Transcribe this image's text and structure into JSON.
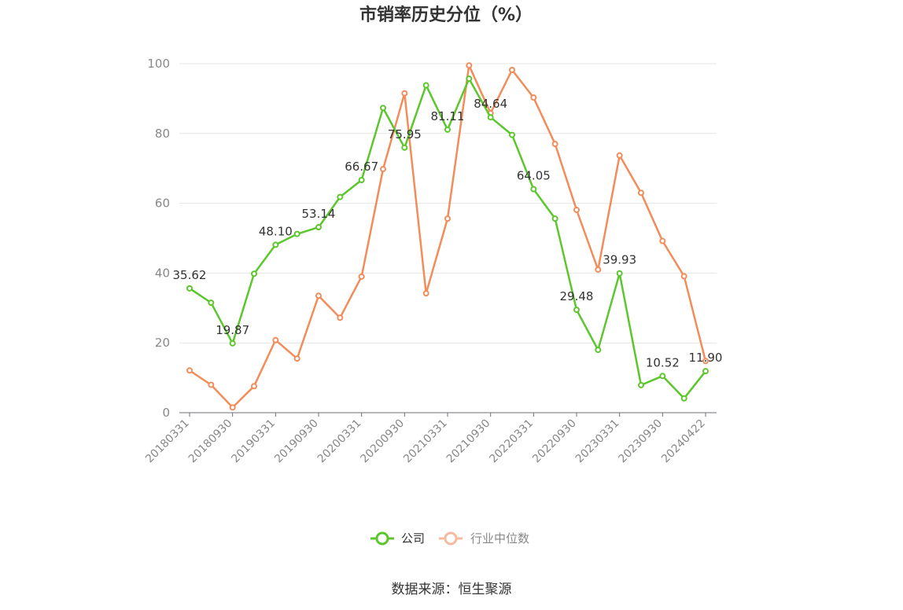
{
  "chart_data": {
    "type": "line",
    "title": "市销率历史分位（%）",
    "xlabel": "",
    "ylabel": "",
    "ylim": [
      0,
      100
    ],
    "yticks": [
      0,
      20,
      40,
      60,
      80,
      100
    ],
    "grid": true,
    "legend_position": "bottom-center",
    "x": [
      "20180331",
      "20180630",
      "20180930",
      "20181231",
      "20190331",
      "20190630",
      "20190930",
      "20191231",
      "20200331",
      "20200630",
      "20200930",
      "20201231",
      "20210331",
      "20210630",
      "20210930",
      "20211231",
      "20220331",
      "20220630",
      "20220930",
      "20221231",
      "20230331",
      "20230630",
      "20230930",
      "20231231",
      "20240422"
    ],
    "xtick_labels": [
      "20180331",
      "20180930",
      "20190331",
      "20190930",
      "20200331",
      "20200930",
      "20210331",
      "20210930",
      "20220331",
      "20220930",
      "20230331",
      "20230930",
      "20240422"
    ],
    "series": [
      {
        "name": "公司",
        "color": "#5cc72c",
        "values": [
          35.62,
          31.5,
          19.87,
          39.8,
          48.1,
          51.2,
          53.14,
          61.8,
          66.67,
          87.3,
          75.95,
          93.8,
          81.11,
          95.7,
          84.64,
          79.6,
          64.05,
          55.6,
          29.48,
          18.0,
          39.93,
          7.9,
          10.52,
          4.1,
          11.9
        ],
        "labels": {
          "0": "35.62",
          "2": "19.87",
          "4": "48.10",
          "6": "53.14",
          "8": "66.67",
          "10": "75.95",
          "12": "81.11",
          "14": "84.64",
          "16": "64.05",
          "18": "29.48",
          "20": "39.93",
          "22": "10.52",
          "24": "11.90"
        }
      },
      {
        "name": "行业中位数",
        "color": "#f28c5a",
        "values": [
          12.1,
          8.0,
          1.5,
          7.6,
          20.8,
          15.5,
          33.5,
          27.2,
          39.0,
          69.8,
          91.5,
          34.2,
          55.6,
          99.5,
          85.8,
          98.2,
          90.3,
          77.0,
          58.1,
          41.0,
          73.7,
          63.0,
          49.2,
          39.1,
          14.8
        ],
        "labels": {}
      }
    ],
    "source": "数据来源：恒生聚源"
  }
}
